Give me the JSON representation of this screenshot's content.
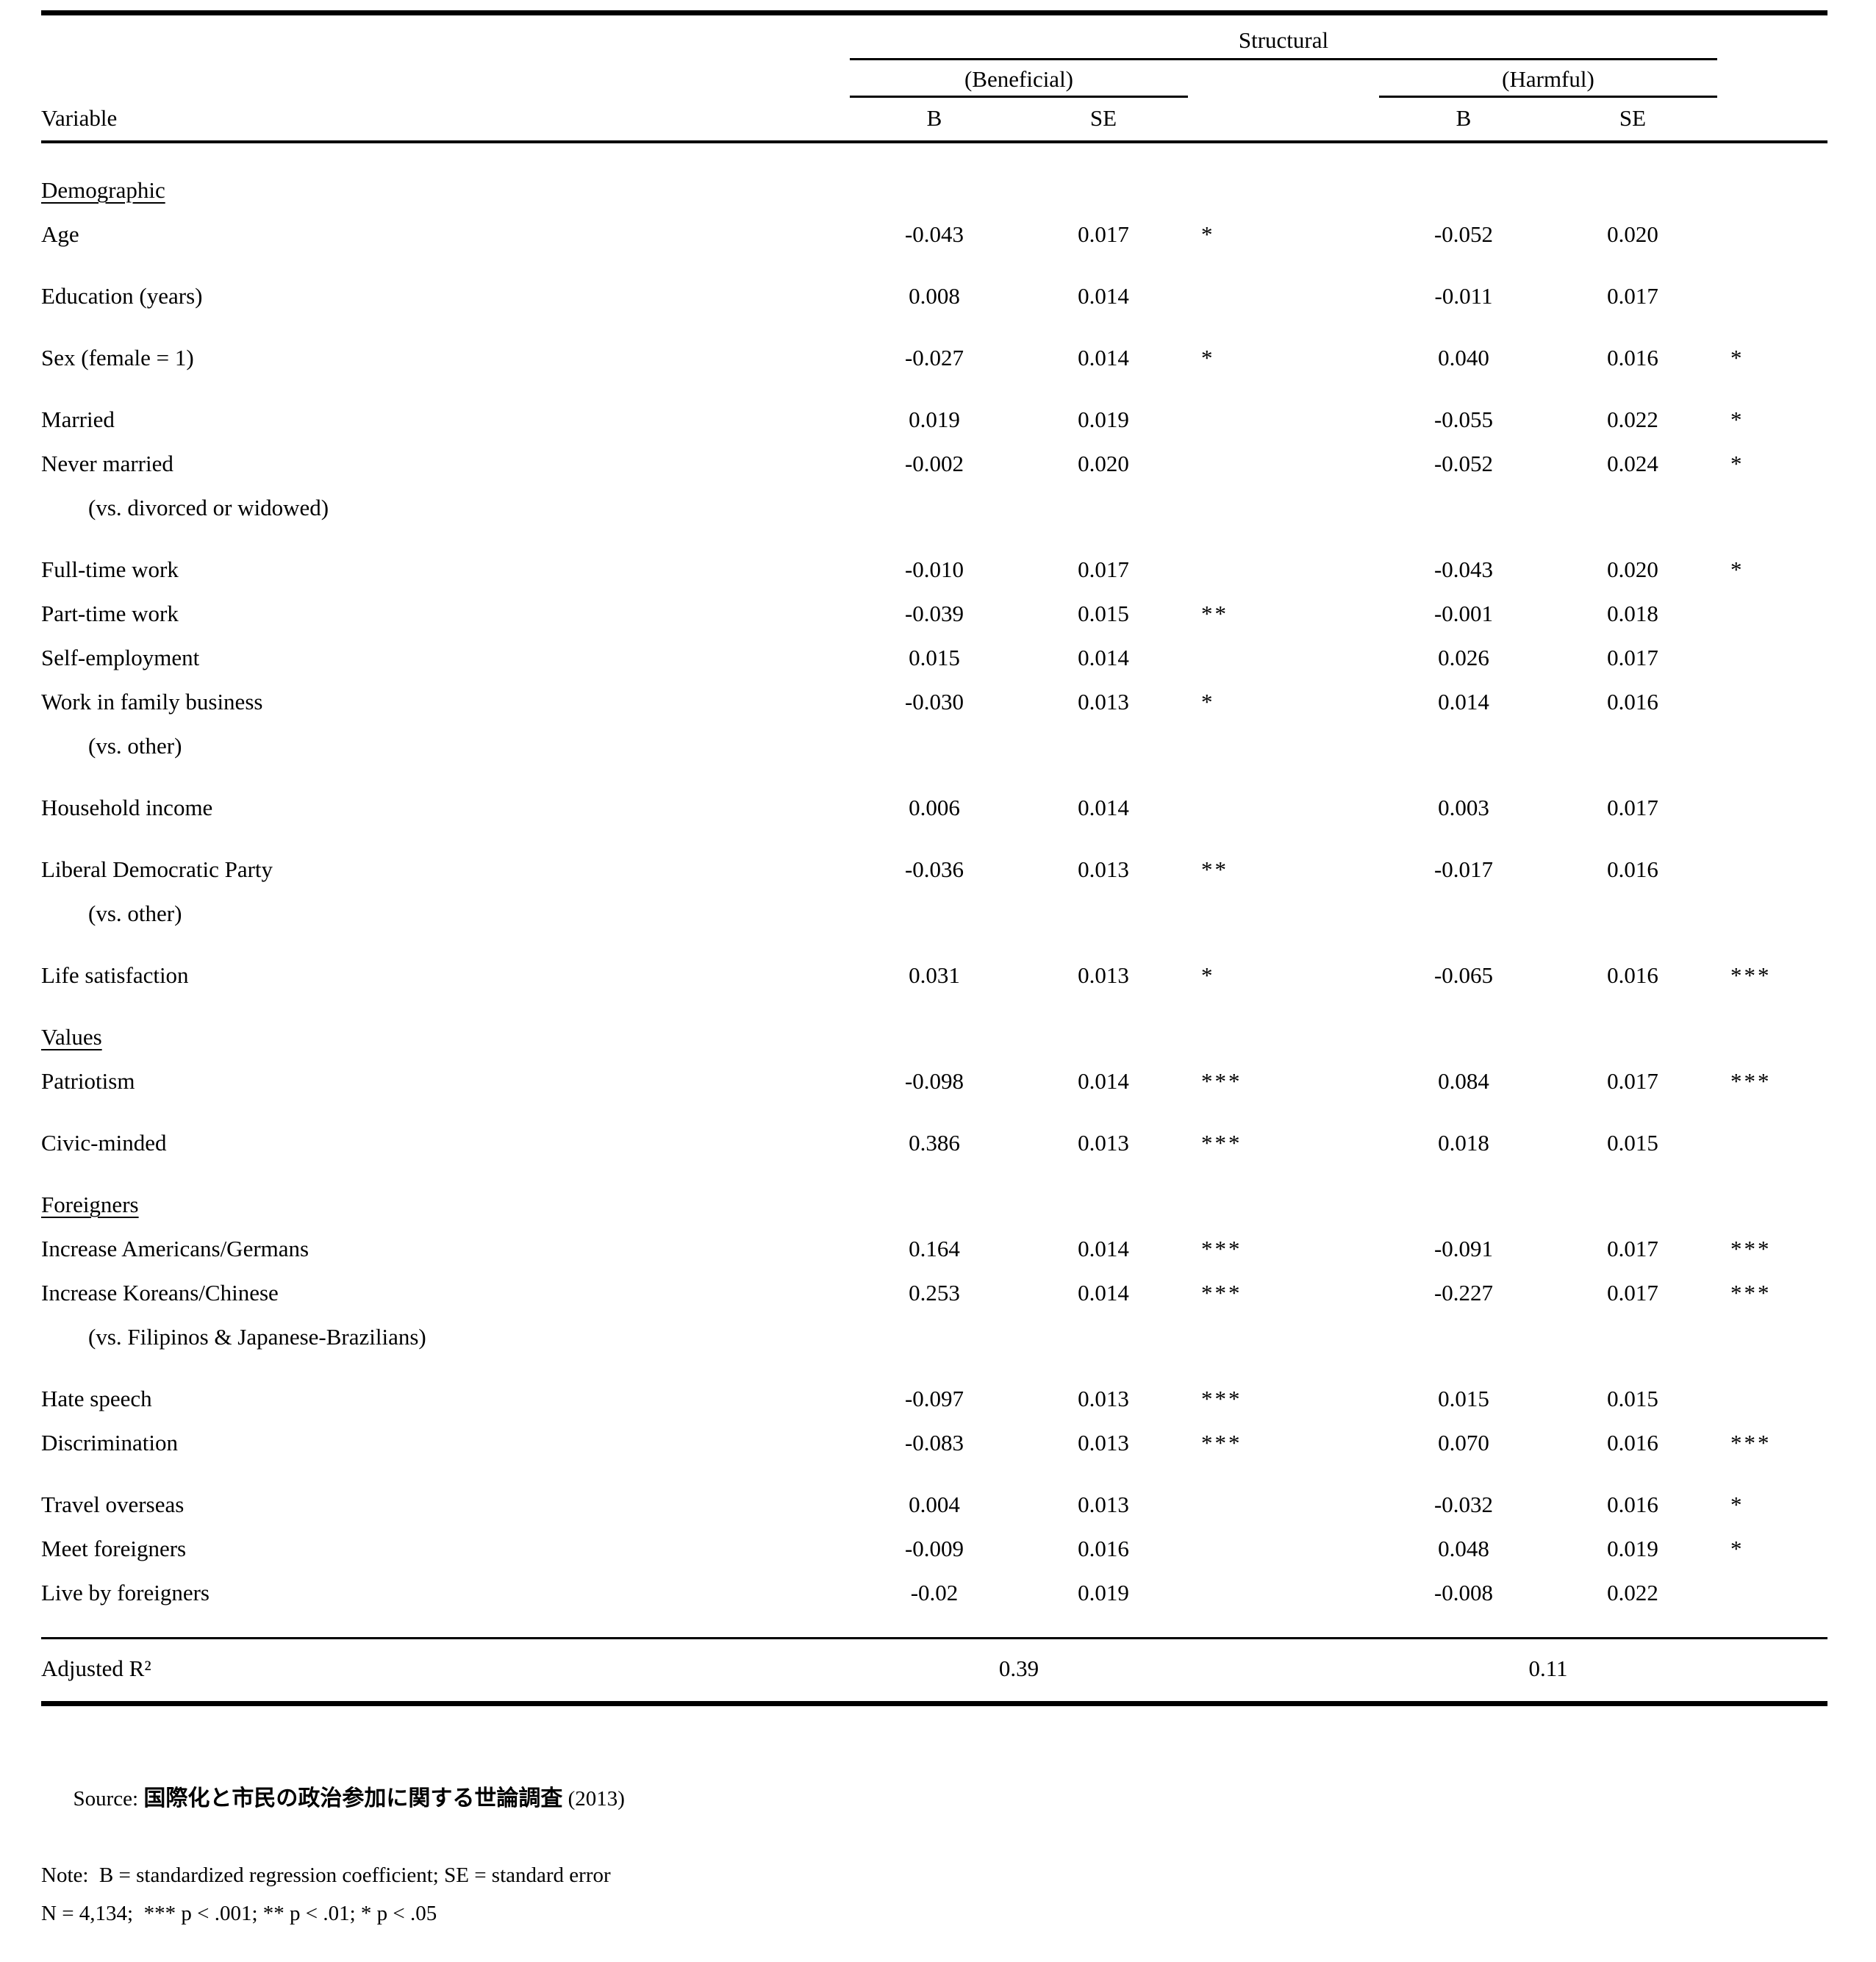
{
  "table": {
    "title": "Structural",
    "groups": [
      "(Beneficial)",
      "(Harmful)"
    ],
    "variable_header": "Variable",
    "col_b": "B",
    "col_se": "SE",
    "rows": [
      {
        "type": "section",
        "label": "Demographic",
        "space": false
      },
      {
        "type": "data",
        "label": "Age",
        "space": false,
        "b1": "-0.043",
        "se1": "0.017",
        "sig1": "*",
        "b2": "-0.052",
        "se2": "0.020",
        "sig2": ""
      },
      {
        "type": "data",
        "label": "Education (years)",
        "space": true,
        "b1": "0.008",
        "se1": "0.014",
        "sig1": "",
        "b2": "-0.011",
        "se2": "0.017",
        "sig2": ""
      },
      {
        "type": "data",
        "label": "Sex (female = 1)",
        "space": true,
        "b1": "-0.027",
        "se1": "0.014",
        "sig1": "*",
        "b2": "0.040",
        "se2": "0.016",
        "sig2": "*"
      },
      {
        "type": "data",
        "label": "Married",
        "space": true,
        "b1": "0.019",
        "se1": "0.019",
        "sig1": "",
        "b2": "-0.055",
        "se2": "0.022",
        "sig2": "*"
      },
      {
        "type": "data",
        "label": "Never married",
        "space": false,
        "b1": "-0.002",
        "se1": "0.020",
        "sig1": "",
        "b2": "-0.052",
        "se2": "0.024",
        "sig2": "*"
      },
      {
        "type": "sub",
        "label": "(vs. divorced or widowed)",
        "space": false
      },
      {
        "type": "data",
        "label": "Full-time work",
        "space": true,
        "b1": "-0.010",
        "se1": "0.017",
        "sig1": "",
        "b2": "-0.043",
        "se2": "0.020",
        "sig2": "*"
      },
      {
        "type": "data",
        "label": "Part-time work",
        "space": false,
        "b1": "-0.039",
        "se1": "0.015",
        "sig1": "**",
        "b2": "-0.001",
        "se2": "0.018",
        "sig2": ""
      },
      {
        "type": "data",
        "label": "Self-employment",
        "space": false,
        "b1": "0.015",
        "se1": "0.014",
        "sig1": "",
        "b2": "0.026",
        "se2": "0.017",
        "sig2": ""
      },
      {
        "type": "data",
        "label": "Work in family business",
        "space": false,
        "b1": "-0.030",
        "se1": "0.013",
        "sig1": "*",
        "b2": "0.014",
        "se2": "0.016",
        "sig2": ""
      },
      {
        "type": "sub",
        "label": "(vs. other)",
        "space": false
      },
      {
        "type": "data",
        "label": "Household income",
        "space": true,
        "b1": "0.006",
        "se1": "0.014",
        "sig1": "",
        "b2": "0.003",
        "se2": "0.017",
        "sig2": ""
      },
      {
        "type": "data",
        "label": "Liberal Democratic Party",
        "space": true,
        "b1": "-0.036",
        "se1": "0.013",
        "sig1": "**",
        "b2": "-0.017",
        "se2": "0.016",
        "sig2": ""
      },
      {
        "type": "sub",
        "label": "(vs. other)",
        "space": false
      },
      {
        "type": "data",
        "label": "Life satisfaction",
        "space": true,
        "b1": "0.031",
        "se1": "0.013",
        "sig1": "*",
        "b2": "-0.065",
        "se2": "0.016",
        "sig2": "***"
      },
      {
        "type": "section",
        "label": "Values",
        "space": true
      },
      {
        "type": "data",
        "label": "Patriotism",
        "space": false,
        "b1": "-0.098",
        "se1": "0.014",
        "sig1": "***",
        "b2": "0.084",
        "se2": "0.017",
        "sig2": "***"
      },
      {
        "type": "data",
        "label": "Civic-minded",
        "space": true,
        "b1": "0.386",
        "se1": "0.013",
        "sig1": "***",
        "b2": "0.018",
        "se2": "0.015",
        "sig2": ""
      },
      {
        "type": "section",
        "label": "Foreigners",
        "space": true
      },
      {
        "type": "data",
        "label": "Increase Americans/Germans",
        "space": false,
        "b1": "0.164",
        "se1": "0.014",
        "sig1": "***",
        "b2": "-0.091",
        "se2": "0.017",
        "sig2": "***"
      },
      {
        "type": "data",
        "label": "Increase Koreans/Chinese",
        "space": false,
        "b1": "0.253",
        "se1": "0.014",
        "sig1": "***",
        "b2": "-0.227",
        "se2": "0.017",
        "sig2": "***"
      },
      {
        "type": "sub",
        "label": "(vs. Filipinos & Japanese-Brazilians)",
        "space": false
      },
      {
        "type": "data",
        "label": "Hate speech",
        "space": true,
        "b1": "-0.097",
        "se1": "0.013",
        "sig1": "***",
        "b2": "0.015",
        "se2": "0.015",
        "sig2": ""
      },
      {
        "type": "data",
        "label": "Discrimination",
        "space": false,
        "b1": "-0.083",
        "se1": "0.013",
        "sig1": "***",
        "b2": "0.070",
        "se2": "0.016",
        "sig2": "***"
      },
      {
        "type": "data",
        "label": "Travel overseas",
        "space": true,
        "b1": "0.004",
        "se1": "0.013",
        "sig1": "",
        "b2": "-0.032",
        "se2": "0.016",
        "sig2": "*"
      },
      {
        "type": "data",
        "label": "Meet foreigners",
        "space": false,
        "b1": "-0.009",
        "se1": "0.016",
        "sig1": "",
        "b2": "0.048",
        "se2": "0.019",
        "sig2": "*"
      },
      {
        "type": "data",
        "label": "Live by foreigners",
        "space": false,
        "b1": "-0.02",
        "se1": "0.019",
        "sig1": "",
        "b2": "-0.008",
        "se2": "0.022",
        "sig2": ""
      }
    ],
    "adjusted_r2": {
      "label": "Adjusted R²",
      "beneficial": "0.39",
      "harmful": "0.11"
    }
  },
  "notes": {
    "source_label": "Source: ",
    "source_cjk": "国際化と市民の政治参加に関する世論調査",
    "source_year": " (2013)",
    "note_line": "Note:  B = standardized regression coefficient; SE = standard error",
    "n_line": "N = 4,134;  *** p < .001; ** p < .01; * p < .05"
  }
}
